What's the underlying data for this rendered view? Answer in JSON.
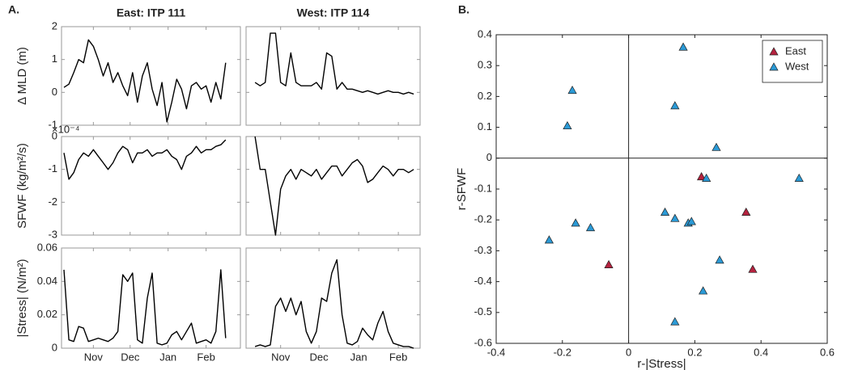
{
  "panel_labels": [
    "A.",
    "B."
  ],
  "chart_data": [
    {
      "type": "line",
      "title": "East: ITP 111",
      "ylabel": "Δ MLD (m)",
      "color": "#000000",
      "x": [
        -24,
        -20,
        -16,
        -12,
        -8,
        -4,
        0,
        4,
        8,
        12,
        16,
        20,
        24,
        28,
        32,
        36,
        40,
        44,
        48,
        52,
        56,
        60,
        64,
        68,
        72,
        76,
        80,
        84,
        88,
        92,
        96,
        100,
        104,
        108
      ],
      "values": [
        0.15,
        0.25,
        0.6,
        1.0,
        0.9,
        1.6,
        1.4,
        1.0,
        0.5,
        0.9,
        0.3,
        0.6,
        0.2,
        -0.1,
        0.6,
        -0.3,
        0.5,
        0.9,
        0.1,
        -0.4,
        0.3,
        -0.9,
        -0.3,
        0.4,
        0.1,
        -0.5,
        0.2,
        0.3,
        0.1,
        0.2,
        -0.3,
        0.3,
        -0.2,
        0.9
      ],
      "xlim": [
        -26,
        120
      ],
      "xticks": [
        {
          "value": 0,
          "label": "Nov"
        },
        {
          "value": 30,
          "label": "Dec"
        },
        {
          "value": 61,
          "label": "Jan"
        },
        {
          "value": 92,
          "label": "Feb"
        }
      ],
      "ylim": [
        -1,
        2
      ],
      "yticks": [
        -1,
        0,
        1,
        2
      ],
      "xtick_labels": false,
      "ytick_labels": true
    },
    {
      "type": "line",
      "title": "West: ITP 114",
      "color": "#000000",
      "x": [
        -20,
        -16,
        -12,
        -8,
        -4,
        0,
        4,
        8,
        12,
        16,
        20,
        24,
        28,
        32,
        36,
        40,
        44,
        48,
        52,
        56,
        60,
        64,
        68,
        72,
        76,
        80,
        84,
        88,
        92,
        96,
        100,
        104
      ],
      "values": [
        0.3,
        0.2,
        0.3,
        1.8,
        1.8,
        0.3,
        0.2,
        1.2,
        0.3,
        0.2,
        0.2,
        0.2,
        0.3,
        0.1,
        1.2,
        1.1,
        0.1,
        0.3,
        0.1,
        0.1,
        0.05,
        0,
        0.05,
        0,
        -0.05,
        0,
        0.05,
        0,
        0,
        -0.05,
        0,
        -0.05
      ],
      "xlim": [
        -27,
        109
      ],
      "xticks": [
        {
          "value": 0,
          "label": "Nov"
        },
        {
          "value": 30,
          "label": "Dec"
        },
        {
          "value": 61,
          "label": "Jan"
        },
        {
          "value": 92,
          "label": "Feb"
        }
      ],
      "ylim": [
        -1,
        2
      ],
      "yticks": [
        -1,
        0,
        1,
        2
      ],
      "xtick_labels": false,
      "ytick_labels": false
    },
    {
      "type": "line",
      "ylabel": "SFWF (kg/m²/s)",
      "y_multiplier": "×10⁻⁴",
      "color": "#000000",
      "x": [
        -24,
        -20,
        -16,
        -12,
        -8,
        -4,
        0,
        4,
        8,
        12,
        16,
        20,
        24,
        28,
        32,
        36,
        40,
        44,
        48,
        52,
        56,
        60,
        64,
        68,
        72,
        76,
        80,
        84,
        88,
        92,
        96,
        100,
        104,
        108
      ],
      "values": [
        -0.5,
        -1.3,
        -1.1,
        -0.7,
        -0.5,
        -0.6,
        -0.4,
        -0.6,
        -0.8,
        -1.0,
        -0.8,
        -0.5,
        -0.3,
        -0.4,
        -0.8,
        -0.5,
        -0.5,
        -0.4,
        -0.6,
        -0.5,
        -0.5,
        -0.4,
        -0.6,
        -0.7,
        -1.0,
        -0.6,
        -0.5,
        -0.3,
        -0.5,
        -0.4,
        -0.4,
        -0.3,
        -0.25,
        -0.1
      ],
      "xlim": [
        -26,
        120
      ],
      "xticks": [
        {
          "value": 0,
          "label": "Nov"
        },
        {
          "value": 30,
          "label": "Dec"
        },
        {
          "value": 61,
          "label": "Jan"
        },
        {
          "value": 92,
          "label": "Feb"
        }
      ],
      "ylim": [
        -3,
        0
      ],
      "yticks": [
        -3,
        -2,
        -1,
        0
      ],
      "xtick_labels": false,
      "ytick_labels": true
    },
    {
      "type": "line",
      "color": "#000000",
      "x": [
        -20,
        -16,
        -12,
        -8,
        -4,
        0,
        4,
        8,
        12,
        16,
        20,
        24,
        28,
        32,
        36,
        40,
        44,
        48,
        52,
        56,
        60,
        64,
        68,
        72,
        76,
        80,
        84,
        88,
        92,
        96,
        100,
        104
      ],
      "values": [
        0,
        -1.0,
        -1.0,
        -2.0,
        -3.0,
        -1.6,
        -1.2,
        -1.0,
        -1.3,
        -1.0,
        -1.1,
        -1.2,
        -1.0,
        -1.3,
        -1.1,
        -0.9,
        -0.9,
        -1.2,
        -1.0,
        -0.8,
        -0.7,
        -0.9,
        -1.4,
        -1.3,
        -1.1,
        -0.9,
        -1.0,
        -1.2,
        -1.0,
        -1.0,
        -1.1,
        -1.0
      ],
      "xlim": [
        -27,
        109
      ],
      "xticks": [
        {
          "value": 0,
          "label": "Nov"
        },
        {
          "value": 30,
          "label": "Dec"
        },
        {
          "value": 61,
          "label": "Jan"
        },
        {
          "value": 92,
          "label": "Feb"
        }
      ],
      "ylim": [
        -3,
        0
      ],
      "yticks": [
        -3,
        -2,
        -1,
        0
      ],
      "xtick_labels": false,
      "ytick_labels": false
    },
    {
      "type": "line",
      "ylabel": "|Stress| (N/m²)",
      "color": "#000000",
      "x": [
        -24,
        -20,
        -16,
        -12,
        -8,
        -4,
        0,
        4,
        8,
        12,
        16,
        20,
        24,
        28,
        32,
        36,
        40,
        44,
        48,
        52,
        56,
        60,
        64,
        68,
        72,
        76,
        80,
        84,
        88,
        92,
        96,
        100,
        104,
        108
      ],
      "values": [
        0.047,
        0.005,
        0.004,
        0.013,
        0.012,
        0.004,
        0.005,
        0.006,
        0.005,
        0.004,
        0.006,
        0.01,
        0.044,
        0.04,
        0.045,
        0.005,
        0.003,
        0.03,
        0.045,
        0.003,
        0.002,
        0.003,
        0.008,
        0.01,
        0.005,
        0.01,
        0.015,
        0.003,
        0.004,
        0.005,
        0.003,
        0.01,
        0.047,
        0.006
      ],
      "xlim": [
        -26,
        120
      ],
      "xticks": [
        {
          "value": 0,
          "label": "Nov"
        },
        {
          "value": 30,
          "label": "Dec"
        },
        {
          "value": 61,
          "label": "Jan"
        },
        {
          "value": 92,
          "label": "Feb"
        }
      ],
      "ylim": [
        0,
        0.06
      ],
      "yticks": [
        0,
        0.02,
        0.04,
        0.06
      ],
      "xtick_labels": true,
      "ytick_labels": true
    },
    {
      "type": "line",
      "color": "#000000",
      "x": [
        -20,
        -16,
        -12,
        -8,
        -4,
        0,
        4,
        8,
        12,
        16,
        20,
        24,
        28,
        32,
        36,
        40,
        44,
        48,
        52,
        56,
        60,
        64,
        68,
        72,
        76,
        80,
        84,
        88,
        92,
        96,
        100,
        104
      ],
      "values": [
        0.001,
        0.002,
        0.001,
        0.002,
        0.025,
        0.03,
        0.022,
        0.03,
        0.02,
        0.028,
        0.01,
        0.003,
        0.01,
        0.03,
        0.028,
        0.045,
        0.053,
        0.02,
        0.003,
        0.002,
        0.004,
        0.012,
        0.008,
        0.005,
        0.015,
        0.022,
        0.01,
        0.003,
        0.002,
        0.001,
        0.001,
        0
      ],
      "xlim": [
        -27,
        109
      ],
      "xticks": [
        {
          "value": 0,
          "label": "Nov"
        },
        {
          "value": 30,
          "label": "Dec"
        },
        {
          "value": 61,
          "label": "Jan"
        },
        {
          "value": 92,
          "label": "Feb"
        }
      ],
      "ylim": [
        0,
        0.06
      ],
      "yticks": [
        0,
        0.02,
        0.04,
        0.06
      ],
      "xtick_labels": true,
      "ytick_labels": false
    },
    {
      "type": "scatter",
      "xlabel": "r-|Stress|",
      "ylabel": "r-SFWF",
      "legend": "northeast",
      "zero_lines": true,
      "series": [
        {
          "name": "East",
          "color": "#b5223f",
          "x": [
            0.22,
            0.355,
            -0.06,
            0.375
          ],
          "y": [
            -0.06,
            -0.175,
            -0.345,
            -0.36
          ]
        },
        {
          "name": "West",
          "color": "#2b9ad6",
          "x": [
            0.165,
            -0.17,
            -0.185,
            0.14,
            0.265,
            0.235,
            0.515,
            0.11,
            0.14,
            0.18,
            0.19,
            -0.16,
            -0.115,
            -0.24,
            0.275,
            0.225,
            0.14
          ],
          "y": [
            0.36,
            0.22,
            0.105,
            0.17,
            0.035,
            -0.065,
            -0.065,
            -0.175,
            -0.195,
            -0.21,
            -0.205,
            -0.21,
            -0.225,
            -0.265,
            -0.33,
            -0.43,
            -0.53
          ]
        }
      ],
      "xlim": [
        -0.4,
        0.6
      ],
      "xticks": [
        -0.4,
        -0.2,
        0,
        0.2,
        0.4,
        0.6
      ],
      "ylim": [
        -0.6,
        0.4
      ],
      "yticks": [
        -0.6,
        -0.5,
        -0.4,
        -0.3,
        -0.2,
        -0.1,
        0,
        0.1,
        0.2,
        0.3,
        0.4
      ],
      "xtick_labels": true,
      "ytick_labels": true
    }
  ]
}
